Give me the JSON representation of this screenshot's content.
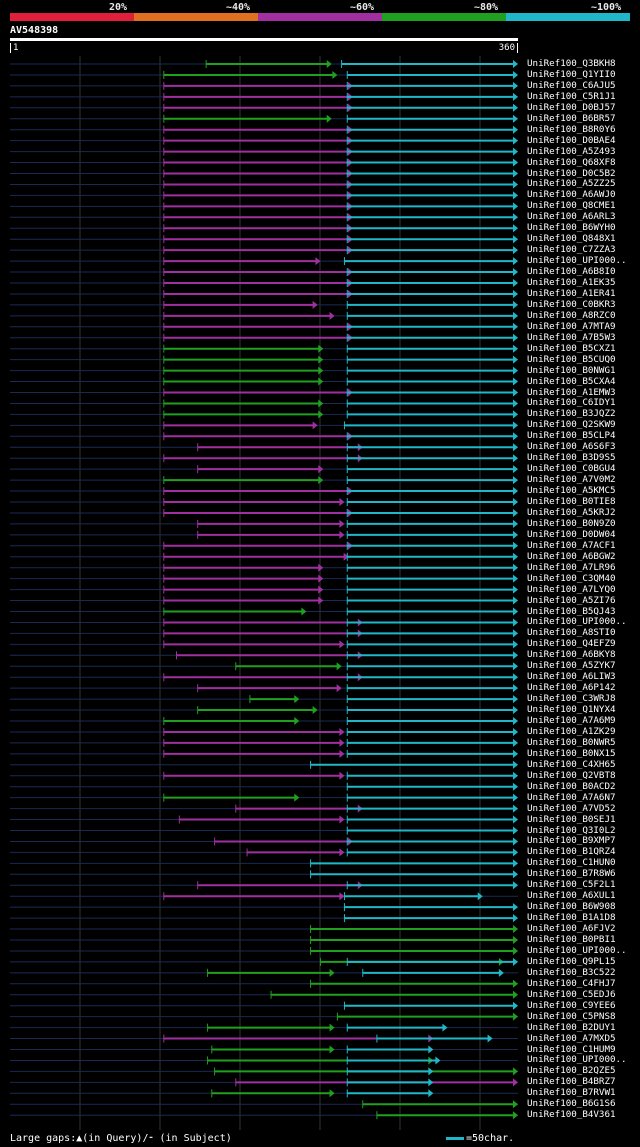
{
  "legend": {
    "segments": [
      {
        "label": "20%",
        "color": "#e0203a"
      },
      {
        "label": "~40%",
        "color": "#e07020"
      },
      {
        "label": "~60%",
        "color": "#a030a0"
      },
      {
        "label": "~80%",
        "color": "#20a020"
      },
      {
        "label": "~100%",
        "color": "#20b8c8"
      }
    ]
  },
  "query": {
    "name": "AV548398",
    "start": "1",
    "end": "360"
  },
  "hits": [
    {
      "label": "UniRef100_Q3BKH8",
      "segs": [
        [
          "g",
          139,
          228
        ],
        [
          "c",
          235,
          360
        ]
      ]
    },
    {
      "label": "UniRef100_Q1YII0",
      "segs": [
        [
          "g",
          109,
          232
        ],
        [
          "c",
          239,
          360
        ]
      ]
    },
    {
      "label": "UniRef100_C6AJU5",
      "segs": [
        [
          "p",
          109,
          243
        ],
        [
          "c",
          239,
          360
        ]
      ]
    },
    {
      "label": "UniRef100_C5R1J1",
      "segs": [
        [
          "p",
          109,
          243
        ],
        [
          "c",
          239,
          360
        ]
      ]
    },
    {
      "label": "UniRef100_D0BJ57",
      "segs": [
        [
          "p",
          109,
          243
        ],
        [
          "c",
          239,
          360
        ]
      ]
    },
    {
      "label": "UniRef100_B6BR57",
      "segs": [
        [
          "g",
          109,
          228
        ],
        [
          "c",
          239,
          360
        ]
      ]
    },
    {
      "label": "UniRef100_B8R0Y6",
      "segs": [
        [
          "p",
          109,
          243
        ],
        [
          "c",
          239,
          360
        ]
      ]
    },
    {
      "label": "UniRef100_D0BAE4",
      "segs": [
        [
          "p",
          109,
          243
        ],
        [
          "c",
          239,
          360
        ]
      ]
    },
    {
      "label": "UniRef100_A5Z493",
      "segs": [
        [
          "p",
          109,
          243
        ],
        [
          "c",
          239,
          360
        ]
      ]
    },
    {
      "label": "UniRef100_Q68XF8",
      "segs": [
        [
          "p",
          109,
          243
        ],
        [
          "c",
          239,
          360
        ]
      ]
    },
    {
      "label": "UniRef100_D0C5B2",
      "segs": [
        [
          "p",
          109,
          243
        ],
        [
          "c",
          239,
          360
        ]
      ]
    },
    {
      "label": "UniRef100_A5ZZ25",
      "segs": [
        [
          "p",
          109,
          243
        ],
        [
          "c",
          239,
          360
        ]
      ]
    },
    {
      "label": "UniRef100_A6AWJ0",
      "segs": [
        [
          "p",
          109,
          243
        ],
        [
          "c",
          239,
          360
        ]
      ]
    },
    {
      "label": "UniRef100_Q8CME1",
      "segs": [
        [
          "p",
          109,
          243
        ],
        [
          "c",
          239,
          360
        ]
      ]
    },
    {
      "label": "UniRef100_A6ARL3",
      "segs": [
        [
          "p",
          109,
          243
        ],
        [
          "c",
          239,
          360
        ]
      ]
    },
    {
      "label": "UniRef100_B6WYH0",
      "segs": [
        [
          "p",
          109,
          243
        ],
        [
          "c",
          239,
          360
        ]
      ]
    },
    {
      "label": "UniRef100_Q848X1",
      "segs": [
        [
          "p",
          109,
          243
        ],
        [
          "c",
          239,
          360
        ]
      ]
    },
    {
      "label": "UniRef100_C7ZZA3",
      "segs": [
        [
          "p",
          109,
          243
        ],
        [
          "c",
          239,
          360
        ]
      ]
    },
    {
      "label": "UniRef100_UPI000..",
      "segs": [
        [
          "p",
          109,
          220
        ],
        [
          "c",
          237,
          360
        ]
      ]
    },
    {
      "label": "UniRef100_A6B8I0",
      "segs": [
        [
          "p",
          109,
          243
        ],
        [
          "c",
          239,
          360
        ]
      ]
    },
    {
      "label": "UniRef100_A1EK35",
      "segs": [
        [
          "p",
          109,
          243
        ],
        [
          "c",
          239,
          360
        ]
      ]
    },
    {
      "label": "UniRef100_A1ER41",
      "segs": [
        [
          "p",
          109,
          243
        ],
        [
          "c",
          239,
          360
        ]
      ]
    },
    {
      "label": "UniRef100_C0BKR3",
      "segs": [
        [
          "p",
          109,
          218
        ],
        [
          "c",
          239,
          360
        ]
      ]
    },
    {
      "label": "UniRef100_A8RZC0",
      "segs": [
        [
          "p",
          109,
          230
        ],
        [
          "c",
          239,
          360
        ]
      ]
    },
    {
      "label": "UniRef100_A7MTA9",
      "segs": [
        [
          "p",
          109,
          243
        ],
        [
          "c",
          239,
          360
        ]
      ]
    },
    {
      "label": "UniRef100_A7B5W3",
      "segs": [
        [
          "p",
          109,
          243
        ],
        [
          "c",
          239,
          360
        ]
      ]
    },
    {
      "label": "UniRef100_B5CXZ1",
      "segs": [
        [
          "g",
          109,
          222
        ],
        [
          "c",
          239,
          360
        ]
      ]
    },
    {
      "label": "UniRef100_B5CUQ0",
      "segs": [
        [
          "g",
          109,
          222
        ],
        [
          "c",
          239,
          360
        ]
      ]
    },
    {
      "label": "UniRef100_B0NWG1",
      "segs": [
        [
          "g",
          109,
          222
        ],
        [
          "c",
          239,
          360
        ]
      ]
    },
    {
      "label": "UniRef100_B5CXA4",
      "segs": [
        [
          "g",
          109,
          222
        ],
        [
          "c",
          239,
          360
        ]
      ]
    },
    {
      "label": "UniRef100_A1EMW3",
      "segs": [
        [
          "p",
          109,
          243
        ],
        [
          "c",
          239,
          360
        ]
      ]
    },
    {
      "label": "UniRef100_C6IDY1",
      "segs": [
        [
          "g",
          109,
          222
        ],
        [
          "c",
          239,
          360
        ]
      ]
    },
    {
      "label": "UniRef100_B3JQZ2",
      "segs": [
        [
          "g",
          109,
          222
        ],
        [
          "c",
          239,
          360
        ]
      ]
    },
    {
      "label": "UniRef100_Q2SKW9",
      "segs": [
        [
          "p",
          109,
          218
        ],
        [
          "c",
          237,
          360
        ]
      ]
    },
    {
      "label": "UniRef100_B5CLP4",
      "segs": [
        [
          "p",
          109,
          243
        ],
        [
          "c",
          239,
          360
        ]
      ]
    },
    {
      "label": "UniRef100_A6S6F3",
      "segs": [
        [
          "p",
          133,
          250
        ],
        [
          "c",
          239,
          360
        ]
      ]
    },
    {
      "label": "UniRef100_B3D9S5",
      "segs": [
        [
          "p",
          109,
          250
        ],
        [
          "c",
          239,
          360
        ]
      ]
    },
    {
      "label": "UniRef100_C0BGU4",
      "segs": [
        [
          "p",
          133,
          222
        ],
        [
          "c",
          239,
          360
        ]
      ]
    },
    {
      "label": "UniRef100_A7V0M2",
      "segs": [
        [
          "g",
          109,
          222
        ],
        [
          "c",
          239,
          360
        ]
      ]
    },
    {
      "label": "UniRef100_A5KMC5",
      "segs": [
        [
          "p",
          109,
          243
        ],
        [
          "c",
          239,
          360
        ]
      ]
    },
    {
      "label": "UniRef100_B0TIE8",
      "segs": [
        [
          "p",
          109,
          237
        ],
        [
          "c",
          239,
          360
        ]
      ]
    },
    {
      "label": "UniRef100_A5KRJ2",
      "segs": [
        [
          "p",
          109,
          243
        ],
        [
          "c",
          239,
          360
        ]
      ]
    },
    {
      "label": "UniRef100_B0N9Z0",
      "segs": [
        [
          "p",
          133,
          237
        ],
        [
          "c",
          239,
          360
        ]
      ]
    },
    {
      "label": "UniRef100_D0DW04",
      "segs": [
        [
          "p",
          133,
          237
        ],
        [
          "c",
          239,
          360
        ]
      ]
    },
    {
      "label": "UniRef100_A7ACF1",
      "segs": [
        [
          "p",
          109,
          243
        ],
        [
          "c",
          239,
          360
        ]
      ]
    },
    {
      "label": "UniRef100_A6BGW2",
      "segs": [
        [
          "p",
          109,
          240
        ],
        [
          "c",
          239,
          360
        ]
      ]
    },
    {
      "label": "UniRef100_A7LR96",
      "segs": [
        [
          "p",
          109,
          222
        ],
        [
          "c",
          239,
          360
        ]
      ]
    },
    {
      "label": "UniRef100_C3QM40",
      "segs": [
        [
          "p",
          109,
          222
        ],
        [
          "c",
          239,
          360
        ]
      ]
    },
    {
      "label": "UniRef100_A7LYQ0",
      "segs": [
        [
          "p",
          109,
          222
        ],
        [
          "c",
          239,
          360
        ]
      ]
    },
    {
      "label": "UniRef100_A5ZI76",
      "segs": [
        [
          "p",
          109,
          222
        ],
        [
          "c",
          239,
          360
        ]
      ]
    },
    {
      "label": "UniRef100_B5QJ43",
      "segs": [
        [
          "g",
          109,
          210
        ],
        [
          "c",
          239,
          360
        ]
      ]
    },
    {
      "label": "UniRef100_UPI000..",
      "segs": [
        [
          "p",
          109,
          250
        ],
        [
          "c",
          239,
          360
        ]
      ]
    },
    {
      "label": "UniRef100_A8STI0",
      "segs": [
        [
          "p",
          109,
          250
        ],
        [
          "c",
          239,
          360
        ]
      ]
    },
    {
      "label": "UniRef100_Q4EFZ9",
      "segs": [
        [
          "p",
          109,
          237
        ],
        [
          "c",
          239,
          360
        ]
      ]
    },
    {
      "label": "UniRef100_A6BKY8",
      "segs": [
        [
          "p",
          118,
          250
        ],
        [
          "c",
          239,
          360
        ]
      ]
    },
    {
      "label": "UniRef100_A5ZYK7",
      "segs": [
        [
          "g",
          160,
          235
        ],
        [
          "c",
          239,
          360
        ]
      ]
    },
    {
      "label": "UniRef100_A6LIW3",
      "segs": [
        [
          "p",
          109,
          250
        ],
        [
          "c",
          239,
          360
        ]
      ]
    },
    {
      "label": "UniRef100_A6P142",
      "segs": [
        [
          "p",
          133,
          235
        ],
        [
          "c",
          239,
          360
        ]
      ]
    },
    {
      "label": "UniRef100_C3WRJ8",
      "segs": [
        [
          "g",
          170,
          205
        ],
        [
          "c",
          239,
          360
        ]
      ]
    },
    {
      "label": "UniRef100_Q1NYX4",
      "segs": [
        [
          "g",
          133,
          218
        ],
        [
          "c",
          239,
          360
        ]
      ]
    },
    {
      "label": "UniRef100_A7A6M9",
      "segs": [
        [
          "g",
          109,
          205
        ],
        [
          "c",
          239,
          360
        ]
      ]
    },
    {
      "label": "UniRef100_A1ZK29",
      "segs": [
        [
          "p",
          109,
          237
        ],
        [
          "c",
          239,
          360
        ]
      ]
    },
    {
      "label": "UniRef100_B0NWR5",
      "segs": [
        [
          "p",
          109,
          237
        ],
        [
          "c",
          239,
          360
        ]
      ]
    },
    {
      "label": "UniRef100_B0NX15",
      "segs": [
        [
          "p",
          109,
          237
        ],
        [
          "c",
          239,
          360
        ]
      ]
    },
    {
      "label": "UniRef100_C4XH65",
      "segs": [
        [
          "c",
          213,
          360
        ]
      ]
    },
    {
      "label": "UniRef100_Q2VBT8",
      "segs": [
        [
          "p",
          109,
          237
        ],
        [
          "c",
          239,
          360
        ]
      ]
    },
    {
      "label": "UniRef100_B0ACD2",
      "segs": [
        [
          "c",
          239,
          360
        ]
      ]
    },
    {
      "label": "UniRef100_A7A6N7",
      "segs": [
        [
          "g",
          109,
          205
        ],
        [
          "c",
          239,
          360
        ]
      ]
    },
    {
      "label": "UniRef100_A7VD52",
      "segs": [
        [
          "p",
          160,
          250
        ],
        [
          "c",
          239,
          360
        ]
      ]
    },
    {
      "label": "UniRef100_B0SEJ1",
      "segs": [
        [
          "p",
          120,
          237
        ],
        [
          "c",
          239,
          360
        ]
      ]
    },
    {
      "label": "UniRef100_Q3I0L2",
      "segs": [
        [
          "c",
          239,
          360
        ]
      ]
    },
    {
      "label": "UniRef100_B9XMP7",
      "segs": [
        [
          "p",
          145,
          243
        ],
        [
          "c",
          239,
          360
        ]
      ]
    },
    {
      "label": "UniRef100_B1QRZ4",
      "segs": [
        [
          "p",
          168,
          237
        ],
        [
          "c",
          239,
          360
        ]
      ]
    },
    {
      "label": "UniRef100_C1HUN0",
      "segs": [
        [
          "c",
          213,
          360
        ]
      ]
    },
    {
      "label": "UniRef100_B7R8W6",
      "segs": [
        [
          "c",
          213,
          360
        ]
      ]
    },
    {
      "label": "UniRef100_C5F2L1",
      "segs": [
        [
          "p",
          133,
          250
        ],
        [
          "c",
          239,
          360
        ]
      ]
    },
    {
      "label": "UniRef100_A6XUL1",
      "segs": [
        [
          "p",
          109,
          237
        ],
        [
          "c",
          237,
          335
        ]
      ]
    },
    {
      "label": "UniRef100_B6W908",
      "segs": [
        [
          "c",
          237,
          360
        ]
      ]
    },
    {
      "label": "UniRef100_B1A1D8",
      "segs": [
        [
          "c",
          237,
          360
        ]
      ]
    },
    {
      "label": "UniRef100_A6FJV2",
      "segs": [
        [
          "g",
          213,
          360
        ]
      ]
    },
    {
      "label": "UniRef100_B0PBI1",
      "segs": [
        [
          "g",
          213,
          360
        ]
      ]
    },
    {
      "label": "UniRef100_UPI000..",
      "segs": [
        [
          "g",
          213,
          360
        ]
      ]
    },
    {
      "label": "UniRef100_Q9PL15",
      "segs": [
        [
          "g",
          220,
          350
        ],
        [
          "c",
          239,
          360
        ]
      ]
    },
    {
      "label": "UniRef100_B3C522",
      "segs": [
        [
          "g",
          140,
          230
        ],
        [
          "c",
          250,
          350
        ]
      ]
    },
    {
      "label": "UniRef100_C4FHJ7",
      "segs": [
        [
          "g",
          213,
          360
        ]
      ]
    },
    {
      "label": "UniRef100_C5EDJ6",
      "segs": [
        [
          "g",
          185,
          360
        ]
      ]
    },
    {
      "label": "UniRef100_C9YEE6",
      "segs": [
        [
          "c",
          237,
          360
        ]
      ]
    },
    {
      "label": "UniRef100_C5PNS8",
      "segs": [
        [
          "g",
          232,
          360
        ]
      ]
    },
    {
      "label": "UniRef100_B2DUY1",
      "segs": [
        [
          "g",
          140,
          230
        ],
        [
          "c",
          239,
          310
        ]
      ]
    },
    {
      "label": "UniRef100_A7MXD5",
      "segs": [
        [
          "p",
          109,
          300
        ],
        [
          "c",
          260,
          342
        ]
      ]
    },
    {
      "label": "UniRef100_C1HUM9",
      "segs": [
        [
          "g",
          143,
          230
        ],
        [
          "c",
          239,
          300
        ]
      ]
    },
    {
      "label": "UniRef100_UPI000..",
      "segs": [
        [
          "g",
          140,
          300
        ],
        [
          "c",
          239,
          305
        ]
      ]
    },
    {
      "label": "UniRef100_B2QZE5",
      "segs": [
        [
          "g",
          145,
          360
        ],
        [
          "c",
          239,
          300
        ]
      ]
    },
    {
      "label": "UniRef100_B4BRZ7",
      "segs": [
        [
          "p",
          160,
          360
        ],
        [
          "c",
          239,
          300
        ]
      ]
    },
    {
      "label": "UniRef100_B7RVW1",
      "segs": [
        [
          "g",
          143,
          230
        ],
        [
          "c",
          239,
          300
        ]
      ]
    },
    {
      "label": "UniRef100_B6G1S6",
      "segs": [
        [
          "g",
          250,
          360
        ]
      ]
    },
    {
      "label": "UniRef100_B4V361",
      "segs": [
        [
          "g",
          260,
          360
        ]
      ]
    }
  ],
  "footer": {
    "gaps_text": "Large gaps:▲(in Query)/⁃ (in Subject)",
    "scale_text": "=50char."
  }
}
